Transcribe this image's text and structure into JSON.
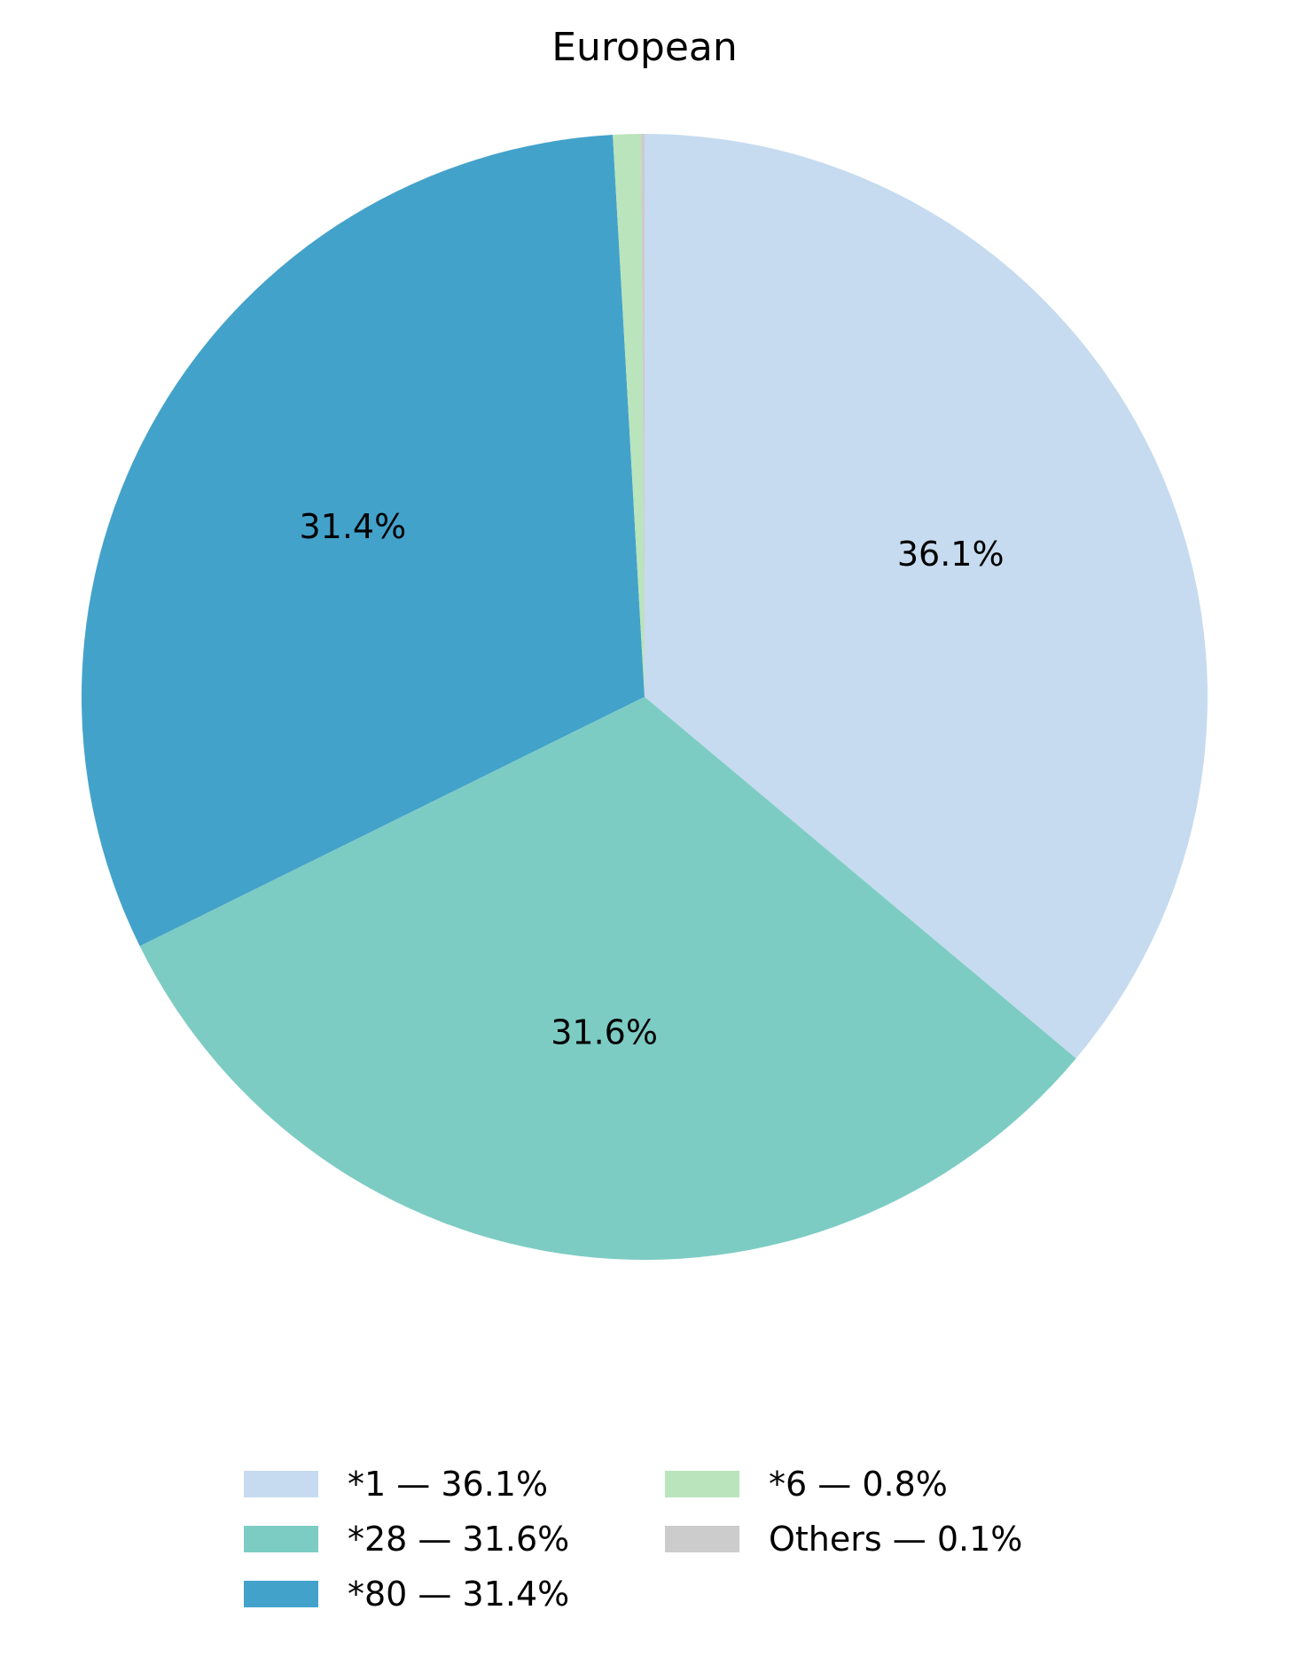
{
  "chart_data": {
    "type": "pie",
    "title": "European",
    "start_angle_deg": 90,
    "direction": "clockwise",
    "legend_position": "bottom",
    "slices": [
      {
        "label": "*1",
        "value": 36.1,
        "pct_label": "36.1%",
        "legend": "*1 — 36.1%",
        "color": "#c6dbef"
      },
      {
        "label": "*28",
        "value": 31.6,
        "pct_label": "31.6%",
        "legend": "*28 — 31.6%",
        "color": "#7dccc4"
      },
      {
        "label": "*80",
        "value": 31.4,
        "pct_label": "31.4%",
        "legend": "*80 — 31.4%",
        "color": "#43a2ca"
      },
      {
        "label": "*6",
        "value": 0.8,
        "pct_label": "",
        "legend": "*6 — 0.8%",
        "color": "#bae4bc"
      },
      {
        "label": "Others",
        "value": 0.1,
        "pct_label": "",
        "legend": "Others — 0.1%",
        "color": "#cccccc"
      }
    ]
  }
}
